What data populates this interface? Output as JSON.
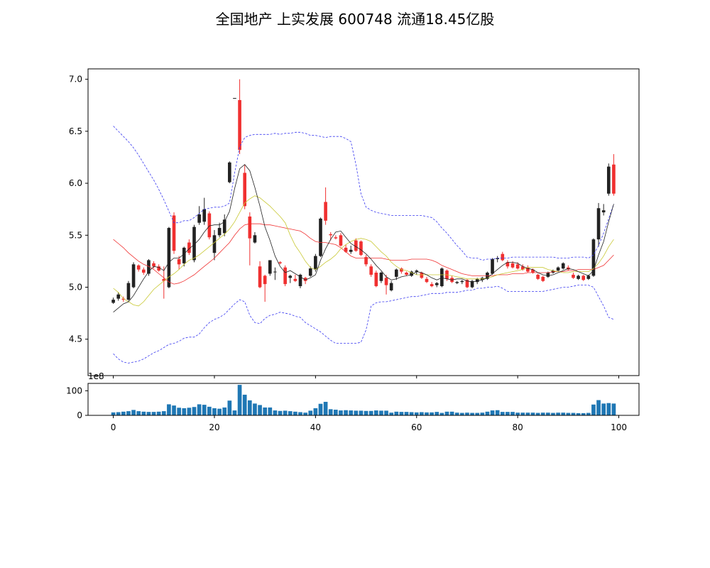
{
  "chart_data": [
    {
      "type": "candlestick",
      "title": "全国地产 上实发展 600748 流通18.45亿股",
      "ylim": [
        4.15,
        7.1
      ],
      "xlim": [
        -5,
        104
      ],
      "yticks": [
        "4.5",
        "5.0",
        "5.5",
        "6.0",
        "6.5",
        "7.0"
      ],
      "grid": false,
      "colors": {
        "up": "#222222",
        "down": "#f03030",
        "ma_fast": "#222222",
        "ma_mid": "#c8c832",
        "ma_slow": "#f03030",
        "bollinger": "#3a3af0"
      },
      "ohlc": [
        [
          4.85,
          4.9,
          4.84,
          4.88
        ],
        [
          4.89,
          4.95,
          4.87,
          4.93
        ],
        [
          4.89,
          4.91,
          4.86,
          4.88
        ],
        [
          4.88,
          5.06,
          4.87,
          5.04
        ],
        [
          5.0,
          5.24,
          4.99,
          5.22
        ],
        [
          5.21,
          5.22,
          5.15,
          5.17
        ],
        [
          5.17,
          5.19,
          5.12,
          5.14
        ],
        [
          5.13,
          5.27,
          5.11,
          5.26
        ],
        [
          5.23,
          5.25,
          5.18,
          5.2
        ],
        [
          5.2,
          5.22,
          5.15,
          5.16
        ],
        [
          5.08,
          5.2,
          4.89,
          5.06
        ],
        [
          5.0,
          5.58,
          4.99,
          5.57
        ],
        [
          5.69,
          5.72,
          5.32,
          5.35
        ],
        [
          5.27,
          5.3,
          5.17,
          5.22
        ],
        [
          5.23,
          5.39,
          5.2,
          5.38
        ],
        [
          5.43,
          5.46,
          5.31,
          5.33
        ],
        [
          5.26,
          5.6,
          5.24,
          5.58
        ],
        [
          5.62,
          5.78,
          5.6,
          5.7
        ],
        [
          5.63,
          5.86,
          5.6,
          5.75
        ],
        [
          5.71,
          5.73,
          5.46,
          5.48
        ],
        [
          5.33,
          5.55,
          5.26,
          5.5
        ],
        [
          5.5,
          5.62,
          5.48,
          5.57
        ],
        [
          5.52,
          5.7,
          5.49,
          5.65
        ],
        [
          6.01,
          6.21,
          6.0,
          6.2
        ],
        [
          6.82,
          6.82,
          6.82,
          6.82
        ],
        [
          6.8,
          7.0,
          6.28,
          6.32
        ],
        [
          6.1,
          6.18,
          5.75,
          5.78
        ],
        [
          5.68,
          5.72,
          5.21,
          5.47
        ],
        [
          5.43,
          5.53,
          5.42,
          5.5
        ],
        [
          5.2,
          5.25,
          4.99,
          5.0
        ],
        [
          5.11,
          5.12,
          4.86,
          5.03
        ],
        [
          5.13,
          5.26,
          5.11,
          5.26
        ],
        [
          5.15,
          5.19,
          5.07,
          5.15
        ],
        [
          5.24,
          5.25,
          5.22,
          5.23
        ],
        [
          5.19,
          5.21,
          5.01,
          5.03
        ],
        [
          5.09,
          5.12,
          5.04,
          5.11
        ],
        [
          5.08,
          5.12,
          5.05,
          5.06
        ],
        [
          5.01,
          5.13,
          4.99,
          5.12
        ],
        [
          5.09,
          5.1,
          5.03,
          5.06
        ],
        [
          5.11,
          5.2,
          5.1,
          5.18
        ],
        [
          5.17,
          5.32,
          5.15,
          5.3
        ],
        [
          5.3,
          5.67,
          5.29,
          5.66
        ],
        [
          5.82,
          5.96,
          5.6,
          5.64
        ],
        [
          5.51,
          5.53,
          5.45,
          5.5
        ],
        [
          5.48,
          5.5,
          5.46,
          5.47
        ],
        [
          5.5,
          5.52,
          5.39,
          5.4
        ],
        [
          5.38,
          5.41,
          5.33,
          5.34
        ],
        [
          5.34,
          5.4,
          5.32,
          5.36
        ],
        [
          5.45,
          5.47,
          5.34,
          5.35
        ],
        [
          5.44,
          5.45,
          5.3,
          5.31
        ],
        [
          5.29,
          5.31,
          5.2,
          5.22
        ],
        [
          5.2,
          5.22,
          5.1,
          5.12
        ],
        [
          5.14,
          5.16,
          5.0,
          5.01
        ],
        [
          5.06,
          5.15,
          5.04,
          5.14
        ],
        [
          5.09,
          5.12,
          4.93,
          5.02
        ],
        [
          4.97,
          5.06,
          4.96,
          5.04
        ],
        [
          5.1,
          5.18,
          5.07,
          5.17
        ],
        [
          5.18,
          5.19,
          5.13,
          5.15
        ],
        [
          5.14,
          5.15,
          5.11,
          5.12
        ],
        [
          5.11,
          5.16,
          5.1,
          5.15
        ],
        [
          5.15,
          5.17,
          5.12,
          5.16
        ],
        [
          5.14,
          5.15,
          5.08,
          5.09
        ],
        [
          5.08,
          5.1,
          5.04,
          5.05
        ],
        [
          5.03,
          5.05,
          5.0,
          5.01
        ],
        [
          5.02,
          5.05,
          5.0,
          5.04
        ],
        [
          5.01,
          5.19,
          5.0,
          5.18
        ],
        [
          5.16,
          5.17,
          5.06,
          5.08
        ],
        [
          5.09,
          5.11,
          5.04,
          5.05
        ],
        [
          5.04,
          5.06,
          5.03,
          5.05
        ],
        [
          5.05,
          5.07,
          5.03,
          5.06
        ],
        [
          5.07,
          5.08,
          4.99,
          5.0
        ],
        [
          5.0,
          5.07,
          4.99,
          5.06
        ],
        [
          5.05,
          5.09,
          5.03,
          5.08
        ],
        [
          5.07,
          5.1,
          5.05,
          5.09
        ],
        [
          5.08,
          5.15,
          5.07,
          5.14
        ],
        [
          5.13,
          5.28,
          5.12,
          5.27
        ],
        [
          5.27,
          5.3,
          5.24,
          5.28
        ],
        [
          5.32,
          5.34,
          5.25,
          5.26
        ],
        [
          5.24,
          5.26,
          5.18,
          5.2
        ],
        [
          5.23,
          5.25,
          5.18,
          5.19
        ],
        [
          5.22,
          5.24,
          5.17,
          5.18
        ],
        [
          5.2,
          5.22,
          5.16,
          5.17
        ],
        [
          5.19,
          5.21,
          5.14,
          5.15
        ],
        [
          5.17,
          5.18,
          5.13,
          5.14
        ],
        [
          5.12,
          5.13,
          5.07,
          5.08
        ],
        [
          5.1,
          5.11,
          5.05,
          5.06
        ],
        [
          5.1,
          5.15,
          5.09,
          5.14
        ],
        [
          5.14,
          5.17,
          5.13,
          5.16
        ],
        [
          5.16,
          5.2,
          5.15,
          5.19
        ],
        [
          5.18,
          5.24,
          5.17,
          5.23
        ],
        [
          5.19,
          5.21,
          5.16,
          5.17
        ],
        [
          5.12,
          5.14,
          5.08,
          5.09
        ],
        [
          5.08,
          5.12,
          5.07,
          5.11
        ],
        [
          5.11,
          5.12,
          5.06,
          5.07
        ],
        [
          5.08,
          5.12,
          5.07,
          5.11
        ],
        [
          5.11,
          5.47,
          5.1,
          5.46
        ],
        [
          5.46,
          5.81,
          5.39,
          5.76
        ],
        [
          5.72,
          5.8,
          5.69,
          5.74
        ],
        [
          5.9,
          6.19,
          5.88,
          6.16
        ],
        [
          6.18,
          6.28,
          5.88,
          5.9
        ]
      ],
      "ma_fast": [
        4.76,
        4.8,
        4.84,
        4.86,
        4.92,
        5.0,
        5.08,
        5.15,
        5.2,
        5.19,
        5.16,
        5.24,
        5.28,
        5.28,
        5.32,
        5.37,
        5.41,
        5.46,
        5.53,
        5.59,
        5.6,
        5.6,
        5.63,
        5.73,
        5.95,
        6.14,
        6.18,
        6.12,
        5.96,
        5.78,
        5.58,
        5.45,
        5.3,
        5.2,
        5.14,
        5.16,
        5.13,
        5.1,
        5.07,
        5.09,
        5.12,
        5.26,
        5.37,
        5.46,
        5.53,
        5.54,
        5.48,
        5.42,
        5.39,
        5.36,
        5.32,
        5.27,
        5.21,
        5.16,
        5.1,
        5.07,
        5.08,
        5.1,
        5.11,
        5.12,
        5.15,
        5.14,
        5.12,
        5.09,
        5.07,
        5.09,
        5.08,
        5.07,
        5.08,
        5.08,
        5.06,
        5.05,
        5.06,
        5.07,
        5.09,
        5.13,
        5.17,
        5.21,
        5.24,
        5.24,
        5.23,
        5.2,
        5.18,
        5.17,
        5.14,
        5.12,
        5.11,
        5.12,
        5.14,
        5.16,
        5.18,
        5.17,
        5.15,
        5.13,
        5.11,
        5.16,
        5.31,
        5.44,
        5.63,
        5.8
      ],
      "ma_mid": [
        4.99,
        4.95,
        4.89,
        4.86,
        4.83,
        4.82,
        4.86,
        4.92,
        4.98,
        5.02,
        5.06,
        5.1,
        5.13,
        5.17,
        5.22,
        5.26,
        5.28,
        5.31,
        5.35,
        5.39,
        5.43,
        5.47,
        5.51,
        5.56,
        5.63,
        5.72,
        5.81,
        5.85,
        5.88,
        5.86,
        5.82,
        5.78,
        5.73,
        5.68,
        5.62,
        5.5,
        5.4,
        5.33,
        5.25,
        5.19,
        5.17,
        5.2,
        5.24,
        5.27,
        5.31,
        5.37,
        5.41,
        5.44,
        5.46,
        5.47,
        5.46,
        5.44,
        5.39,
        5.34,
        5.3,
        5.24,
        5.2,
        5.17,
        5.16,
        5.14,
        5.12,
        5.12,
        5.12,
        5.12,
        5.12,
        5.12,
        5.12,
        5.11,
        5.1,
        5.09,
        5.08,
        5.08,
        5.08,
        5.08,
        5.09,
        5.1,
        5.12,
        5.13,
        5.14,
        5.15,
        5.16,
        5.17,
        5.19,
        5.19,
        5.19,
        5.19,
        5.17,
        5.16,
        5.15,
        5.14,
        5.14,
        5.15,
        5.15,
        5.15,
        5.15,
        5.18,
        5.23,
        5.3,
        5.39,
        5.46
      ],
      "ma_slow": [
        5.46,
        5.42,
        5.38,
        5.33,
        5.29,
        5.25,
        5.22,
        5.2,
        5.17,
        5.13,
        5.09,
        5.05,
        5.03,
        5.04,
        5.06,
        5.09,
        5.12,
        5.16,
        5.2,
        5.24,
        5.28,
        5.33,
        5.38,
        5.43,
        5.5,
        5.56,
        5.6,
        5.61,
        5.61,
        5.61,
        5.6,
        5.6,
        5.59,
        5.58,
        5.57,
        5.56,
        5.55,
        5.54,
        5.51,
        5.47,
        5.44,
        5.43,
        5.43,
        5.42,
        5.41,
        5.38,
        5.34,
        5.3,
        5.28,
        5.28,
        5.28,
        5.28,
        5.28,
        5.28,
        5.27,
        5.26,
        5.26,
        5.26,
        5.26,
        5.27,
        5.27,
        5.27,
        5.27,
        5.26,
        5.24,
        5.21,
        5.19,
        5.17,
        5.15,
        5.13,
        5.12,
        5.11,
        5.11,
        5.11,
        5.11,
        5.11,
        5.12,
        5.12,
        5.12,
        5.13,
        5.13,
        5.13,
        5.14,
        5.14,
        5.14,
        5.14,
        5.14,
        5.15,
        5.15,
        5.15,
        5.16,
        5.16,
        5.17,
        5.17,
        5.17,
        5.17,
        5.19,
        5.21,
        5.26,
        5.31
      ],
      "boll_upper": [
        6.55,
        6.5,
        6.45,
        6.4,
        6.34,
        6.27,
        6.19,
        6.11,
        6.03,
        5.94,
        5.84,
        5.73,
        5.62,
        5.62,
        5.64,
        5.64,
        5.67,
        5.71,
        5.75,
        5.76,
        5.77,
        5.77,
        5.78,
        5.81,
        6.1,
        6.35,
        6.44,
        6.46,
        6.47,
        6.47,
        6.47,
        6.47,
        6.48,
        6.47,
        6.48,
        6.48,
        6.49,
        6.49,
        6.48,
        6.46,
        6.46,
        6.45,
        6.44,
        6.45,
        6.45,
        6.45,
        6.43,
        6.4,
        6.18,
        5.9,
        5.77,
        5.74,
        5.72,
        5.71,
        5.7,
        5.69,
        5.69,
        5.69,
        5.69,
        5.69,
        5.69,
        5.69,
        5.68,
        5.67,
        5.63,
        5.57,
        5.52,
        5.46,
        5.4,
        5.35,
        5.29,
        5.28,
        5.28,
        5.26,
        5.27,
        5.27,
        5.28,
        5.28,
        5.28,
        5.29,
        5.29,
        5.29,
        5.29,
        5.29,
        5.29,
        5.29,
        5.29,
        5.29,
        5.28,
        5.28,
        5.28,
        5.29,
        5.29,
        5.29,
        5.28,
        5.31,
        5.4,
        5.52,
        5.66,
        5.8
      ],
      "boll_lower": [
        4.36,
        4.31,
        4.28,
        4.27,
        4.28,
        4.29,
        4.31,
        4.34,
        4.37,
        4.39,
        4.42,
        4.45,
        4.46,
        4.48,
        4.51,
        4.52,
        4.52,
        4.55,
        4.61,
        4.66,
        4.69,
        4.71,
        4.74,
        4.79,
        4.84,
        4.88,
        4.86,
        4.73,
        4.66,
        4.65,
        4.7,
        4.73,
        4.74,
        4.76,
        4.75,
        4.74,
        4.72,
        4.71,
        4.66,
        4.63,
        4.6,
        4.57,
        4.53,
        4.49,
        4.46,
        4.46,
        4.46,
        4.46,
        4.46,
        4.47,
        4.59,
        4.82,
        4.85,
        4.86,
        4.86,
        4.87,
        4.88,
        4.89,
        4.9,
        4.91,
        4.91,
        4.92,
        4.93,
        4.94,
        4.94,
        4.94,
        4.95,
        4.95,
        4.95,
        4.96,
        4.97,
        4.97,
        4.99,
        4.99,
        5.0,
        5.0,
        5.01,
        4.99,
        4.96,
        4.96,
        4.96,
        4.96,
        4.96,
        4.96,
        4.96,
        4.96,
        4.97,
        4.98,
        4.99,
        5.0,
        5.0,
        5.01,
        5.02,
        5.02,
        5.02,
        5.0,
        4.91,
        4.82,
        4.71,
        4.69
      ]
    },
    {
      "type": "bar",
      "xlim": [
        -5,
        104
      ],
      "ylim": [
        0,
        130000000
      ],
      "exponent_label": "1e8",
      "yticks": [
        "0",
        "100"
      ],
      "xticks": [
        "0",
        "20",
        "40",
        "60",
        "80",
        "100"
      ],
      "color": "#1f77b4",
      "values": [
        12000000,
        13000000,
        15000000,
        17000000,
        22000000,
        17000000,
        15000000,
        14000000,
        14000000,
        15000000,
        17000000,
        45000000,
        40000000,
        31000000,
        29000000,
        31000000,
        34000000,
        45000000,
        43000000,
        35000000,
        29000000,
        27000000,
        32000000,
        60000000,
        20000000,
        124000000,
        84000000,
        61000000,
        48000000,
        42000000,
        32000000,
        32000000,
        20000000,
        18000000,
        19000000,
        17000000,
        15000000,
        13000000,
        11000000,
        19000000,
        29000000,
        47000000,
        55000000,
        25000000,
        23000000,
        20000000,
        21000000,
        20000000,
        19000000,
        19000000,
        18000000,
        18000000,
        20000000,
        19000000,
        19000000,
        11000000,
        15000000,
        14000000,
        14000000,
        13000000,
        12000000,
        13000000,
        12000000,
        12000000,
        14000000,
        10000000,
        15000000,
        15000000,
        11000000,
        10000000,
        11000000,
        10000000,
        10000000,
        11000000,
        15000000,
        20000000,
        21000000,
        14000000,
        14000000,
        14000000,
        11000000,
        11000000,
        11000000,
        11000000,
        10000000,
        11000000,
        11000000,
        10000000,
        11000000,
        11000000,
        10000000,
        10000000,
        9000000,
        9000000,
        10000000,
        44000000,
        62000000,
        48000000,
        50000000,
        48000000
      ]
    }
  ]
}
